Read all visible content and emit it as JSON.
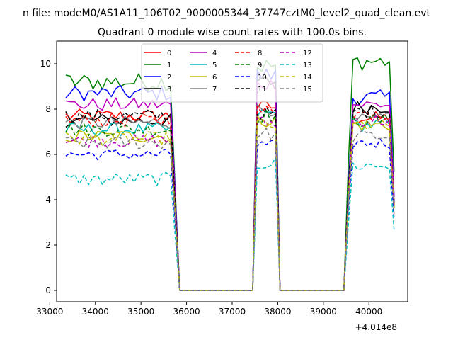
{
  "chart_data": {
    "type": "line",
    "suptitle": "n file: modeM0/AS1A11_106T02_9000005344_37747cztM0_level2_quad_clean.evt",
    "title": "Quadrant 0 module wise count rates with 100.0s bins.",
    "xlabel": "",
    "ylabel": "",
    "x_offset_label": "+4.014e8",
    "x_offset": 401400000,
    "xlim": [
      33150,
      40850
    ],
    "ylim": [
      -0.5,
      11.0
    ],
    "xticks": [
      33000,
      34000,
      35000,
      36000,
      37000,
      38000,
      39000,
      40000
    ],
    "xtick_labels": [
      "33000",
      "34000",
      "35000",
      "36000",
      "37000",
      "38000",
      "39000",
      "40000"
    ],
    "yticks": [
      0,
      2,
      4,
      6,
      8,
      10
    ],
    "ytick_labels": [
      "0",
      "2",
      "4",
      "6",
      "8",
      "10"
    ],
    "grid": false,
    "legend": {
      "placement": "top-center",
      "columns": 4
    },
    "bin_size_s": 100,
    "segments": [
      {
        "x_start": 33350,
        "x_end": 35750
      },
      {
        "x_start": 37550,
        "x_end": 37950
      },
      {
        "x_start": 39550,
        "x_end": 40550
      }
    ],
    "series": [
      {
        "name": "0",
        "color": "#ff0000",
        "dash": "solid",
        "levels": [
          7.7,
          8.1,
          7.6
        ],
        "noise": 0.3
      },
      {
        "name": "1",
        "color": "#008000",
        "dash": "solid",
        "levels": [
          9.2,
          9.9,
          10.1
        ],
        "noise": 0.4
      },
      {
        "name": "2",
        "color": "#0000ff",
        "dash": "solid",
        "levels": [
          8.7,
          9.5,
          8.5
        ],
        "noise": 0.35
      },
      {
        "name": "3",
        "color": "#000000",
        "dash": "solid",
        "levels": [
          7.5,
          9.2,
          8.1
        ],
        "noise": 0.3
      },
      {
        "name": "4",
        "color": "#bf00bf",
        "dash": "solid",
        "levels": [
          8.2,
          9.1,
          8.2
        ],
        "noise": 0.3
      },
      {
        "name": "5",
        "color": "#00bfbf",
        "dash": "solid",
        "levels": [
          7.1,
          7.8,
          7.3
        ],
        "noise": 0.3
      },
      {
        "name": "6",
        "color": "#bfbf00",
        "dash": "solid",
        "levels": [
          6.8,
          7.5,
          7.3
        ],
        "noise": 0.3
      },
      {
        "name": "7",
        "color": "#808080",
        "dash": "solid",
        "levels": [
          7.4,
          8.0,
          7.5
        ],
        "noise": 0.3
      },
      {
        "name": "8",
        "color": "#ff0000",
        "dash": "dashed",
        "levels": [
          7.5,
          7.9,
          7.8
        ],
        "noise": 0.3
      },
      {
        "name": "9",
        "color": "#008000",
        "dash": "dashed",
        "levels": [
          7.1,
          7.7,
          7.5
        ],
        "noise": 0.3
      },
      {
        "name": "10",
        "color": "#0000ff",
        "dash": "dashed",
        "levels": [
          6.0,
          6.4,
          6.5
        ],
        "noise": 0.25
      },
      {
        "name": "11",
        "color": "#000000",
        "dash": "dashed",
        "levels": [
          7.7,
          7.8,
          7.9
        ],
        "noise": 0.3
      },
      {
        "name": "12",
        "color": "#bf00bf",
        "dash": "dashed",
        "levels": [
          6.6,
          7.4,
          7.5
        ],
        "noise": 0.3
      },
      {
        "name": "13",
        "color": "#00bfbf",
        "dash": "dashed",
        "levels": [
          4.9,
          5.6,
          5.5
        ],
        "noise": 0.3
      },
      {
        "name": "14",
        "color": "#bfbf00",
        "dash": "dashed",
        "levels": [
          6.7,
          7.3,
          7.3
        ],
        "noise": 0.3
      },
      {
        "name": "15",
        "color": "#808080",
        "dash": "dashed",
        "levels": [
          6.5,
          6.9,
          6.8
        ],
        "noise": 0.3
      }
    ]
  }
}
